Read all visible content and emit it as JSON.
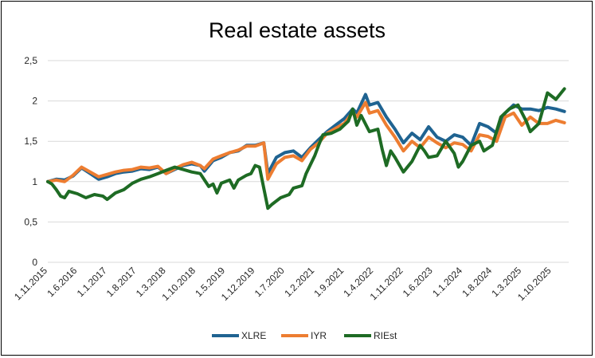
{
  "chart_data": {
    "type": "line",
    "title": "Real estate assets",
    "xlabel": "",
    "ylabel": "",
    "ylim": [
      0,
      2.5
    ],
    "y_ticks": [
      "0",
      "0,5",
      "1",
      "1,5",
      "2",
      "2,5"
    ],
    "x_start": "1.11.2015",
    "x_end": "1.2.2026",
    "x_tick_labels": [
      "1.11.2015",
      "1.6.2016",
      "1.1.2017",
      "1.8.2017",
      "1.3.2018",
      "1.10.2018",
      "1.5.2019",
      "1.12.2019",
      "1.7.2020",
      "1.2.2021",
      "1.9.2021",
      "1.4.2022",
      "1.11.2022",
      "1.6.2023",
      "1.1.2024",
      "1.8.2024",
      "1.3.2025",
      "1.10.2025"
    ],
    "grid": true,
    "legend_position": "bottom",
    "series": [
      {
        "name": "XLRE",
        "color": "#1f6391",
        "points": [
          [
            "1.11.2015",
            1.0
          ],
          [
            "1.1.2016",
            1.03
          ],
          [
            "1.3.2016",
            1.02
          ],
          [
            "1.5.2016",
            1.07
          ],
          [
            "1.7.2016",
            1.17
          ],
          [
            "1.9.2016",
            1.1
          ],
          [
            "1.11.2016",
            1.03
          ],
          [
            "1.1.2017",
            1.06
          ],
          [
            "1.3.2017",
            1.1
          ],
          [
            "1.5.2017",
            1.12
          ],
          [
            "1.7.2017",
            1.13
          ],
          [
            "1.9.2017",
            1.16
          ],
          [
            "1.11.2017",
            1.15
          ],
          [
            "1.1.2018",
            1.18
          ],
          [
            "1.3.2018",
            1.1
          ],
          [
            "1.5.2018",
            1.15
          ],
          [
            "1.7.2018",
            1.2
          ],
          [
            "1.9.2018",
            1.22
          ],
          [
            "1.11.2018",
            1.2
          ],
          [
            "1.12.2018",
            1.13
          ],
          [
            "1.2.2019",
            1.26
          ],
          [
            "1.4.2019",
            1.3
          ],
          [
            "1.6.2019",
            1.36
          ],
          [
            "1.8.2019",
            1.38
          ],
          [
            "1.10.2019",
            1.45
          ],
          [
            "1.12.2019",
            1.45
          ],
          [
            "1.2.2020",
            1.48
          ],
          [
            "1.3.2020",
            1.1
          ],
          [
            "1.5.2020",
            1.3
          ],
          [
            "1.7.2020",
            1.36
          ],
          [
            "1.9.2020",
            1.38
          ],
          [
            "1.11.2020",
            1.3
          ],
          [
            "1.1.2021",
            1.42
          ],
          [
            "1.3.2021",
            1.52
          ],
          [
            "1.5.2021",
            1.62
          ],
          [
            "1.7.2021",
            1.7
          ],
          [
            "1.9.2021",
            1.78
          ],
          [
            "1.11.2021",
            1.9
          ],
          [
            "1.12.2021",
            1.85
          ],
          [
            "1.2.2022",
            2.08
          ],
          [
            "1.3.2022",
            1.95
          ],
          [
            "1.5.2022",
            1.98
          ],
          [
            "1.7.2022",
            1.8
          ],
          [
            "1.9.2022",
            1.65
          ],
          [
            "1.11.2022",
            1.48
          ],
          [
            "1.1.2023",
            1.6
          ],
          [
            "1.3.2023",
            1.52
          ],
          [
            "1.5.2023",
            1.68
          ],
          [
            "1.7.2023",
            1.55
          ],
          [
            "1.9.2023",
            1.5
          ],
          [
            "1.11.2023",
            1.58
          ],
          [
            "1.1.2024",
            1.55
          ],
          [
            "1.3.2024",
            1.45
          ],
          [
            "1.5.2024",
            1.72
          ],
          [
            "1.7.2024",
            1.68
          ],
          [
            "1.9.2024",
            1.6
          ],
          [
            "1.11.2024",
            1.85
          ],
          [
            "1.1.2025",
            1.95
          ],
          [
            "1.3.2025",
            1.9
          ],
          [
            "1.5.2025",
            1.9
          ],
          [
            "1.7.2025",
            1.88
          ],
          [
            "1.9.2025",
            1.92
          ],
          [
            "1.11.2025",
            1.9
          ],
          [
            "1.1.2026",
            1.87
          ]
        ]
      },
      {
        "name": "IYR",
        "color": "#ed7d31",
        "points": [
          [
            "1.11.2015",
            1.0
          ],
          [
            "1.1.2016",
            1.02
          ],
          [
            "1.3.2016",
            1.0
          ],
          [
            "1.5.2016",
            1.08
          ],
          [
            "1.7.2016",
            1.18
          ],
          [
            "1.9.2016",
            1.12
          ],
          [
            "1.11.2016",
            1.06
          ],
          [
            "1.1.2017",
            1.09
          ],
          [
            "1.3.2017",
            1.12
          ],
          [
            "1.5.2017",
            1.14
          ],
          [
            "1.7.2017",
            1.15
          ],
          [
            "1.9.2017",
            1.18
          ],
          [
            "1.11.2017",
            1.17
          ],
          [
            "1.1.2018",
            1.19
          ],
          [
            "1.3.2018",
            1.1
          ],
          [
            "1.5.2018",
            1.16
          ],
          [
            "1.7.2018",
            1.21
          ],
          [
            "1.9.2018",
            1.24
          ],
          [
            "1.11.2018",
            1.2
          ],
          [
            "1.12.2018",
            1.16
          ],
          [
            "1.2.2019",
            1.28
          ],
          [
            "1.4.2019",
            1.32
          ],
          [
            "1.6.2019",
            1.36
          ],
          [
            "1.8.2019",
            1.39
          ],
          [
            "1.10.2019",
            1.44
          ],
          [
            "1.12.2019",
            1.44
          ],
          [
            "1.2.2020",
            1.48
          ],
          [
            "1.3.2020",
            1.03
          ],
          [
            "1.5.2020",
            1.22
          ],
          [
            "1.7.2020",
            1.3
          ],
          [
            "1.9.2020",
            1.32
          ],
          [
            "1.11.2020",
            1.26
          ],
          [
            "1.1.2021",
            1.4
          ],
          [
            "1.3.2021",
            1.48
          ],
          [
            "1.5.2021",
            1.6
          ],
          [
            "1.7.2021",
            1.66
          ],
          [
            "1.9.2021",
            1.72
          ],
          [
            "1.11.2021",
            1.86
          ],
          [
            "1.12.2021",
            1.8
          ],
          [
            "1.2.2022",
            1.98
          ],
          [
            "1.3.2022",
            1.85
          ],
          [
            "1.5.2022",
            1.88
          ],
          [
            "1.7.2022",
            1.7
          ],
          [
            "1.9.2022",
            1.55
          ],
          [
            "1.11.2022",
            1.38
          ],
          [
            "1.1.2023",
            1.5
          ],
          [
            "1.3.2023",
            1.42
          ],
          [
            "1.5.2023",
            1.55
          ],
          [
            "1.7.2023",
            1.48
          ],
          [
            "1.9.2023",
            1.42
          ],
          [
            "1.11.2023",
            1.48
          ],
          [
            "1.1.2024",
            1.46
          ],
          [
            "1.3.2024",
            1.38
          ],
          [
            "1.5.2024",
            1.58
          ],
          [
            "1.7.2024",
            1.56
          ],
          [
            "1.9.2024",
            1.5
          ],
          [
            "1.11.2024",
            1.8
          ],
          [
            "1.1.2025",
            1.85
          ],
          [
            "1.3.2025",
            1.7
          ],
          [
            "1.5.2025",
            1.8
          ],
          [
            "1.7.2025",
            1.72
          ],
          [
            "1.9.2025",
            1.72
          ],
          [
            "1.11.2025",
            1.76
          ],
          [
            "1.1.2026",
            1.73
          ]
        ]
      },
      {
        "name": "RIEst",
        "color": "#1e6b24",
        "points": [
          [
            "1.11.2015",
            1.0
          ],
          [
            "1.12.2015",
            0.97
          ],
          [
            "1.1.2016",
            0.9
          ],
          [
            "1.2.2016",
            0.82
          ],
          [
            "1.3.2016",
            0.8
          ],
          [
            "1.4.2016",
            0.88
          ],
          [
            "1.6.2016",
            0.85
          ],
          [
            "1.8.2016",
            0.8
          ],
          [
            "1.10.2016",
            0.84
          ],
          [
            "1.12.2016",
            0.82
          ],
          [
            "1.1.2017",
            0.78
          ],
          [
            "1.3.2017",
            0.86
          ],
          [
            "1.5.2017",
            0.9
          ],
          [
            "1.7.2017",
            0.98
          ],
          [
            "1.9.2017",
            1.03
          ],
          [
            "1.11.2017",
            1.06
          ],
          [
            "1.1.2018",
            1.1
          ],
          [
            "1.3.2018",
            1.14
          ],
          [
            "1.5.2018",
            1.18
          ],
          [
            "1.7.2018",
            1.15
          ],
          [
            "1.9.2018",
            1.12
          ],
          [
            "1.11.2018",
            1.1
          ],
          [
            "1.1.2019",
            0.94
          ],
          [
            "1.2.2019",
            0.97
          ],
          [
            "1.3.2019",
            0.86
          ],
          [
            "1.4.2019",
            0.98
          ],
          [
            "1.6.2019",
            1.02
          ],
          [
            "1.7.2019",
            0.92
          ],
          [
            "1.8.2019",
            1.02
          ],
          [
            "1.10.2019",
            1.08
          ],
          [
            "1.11.2019",
            1.1
          ],
          [
            "1.12.2019",
            1.2
          ],
          [
            "1.1.2020",
            1.18
          ],
          [
            "1.3.2020",
            0.67
          ],
          [
            "1.4.2020",
            0.72
          ],
          [
            "1.6.2020",
            0.8
          ],
          [
            "1.8.2020",
            0.84
          ],
          [
            "1.9.2020",
            0.92
          ],
          [
            "1.11.2020",
            0.95
          ],
          [
            "1.12.2020",
            1.1
          ],
          [
            "1.2.2021",
            1.32
          ],
          [
            "1.3.2021",
            1.45
          ],
          [
            "1.4.2021",
            1.58
          ],
          [
            "1.6.2021",
            1.6
          ],
          [
            "1.8.2021",
            1.65
          ],
          [
            "1.10.2021",
            1.75
          ],
          [
            "1.11.2021",
            1.9
          ],
          [
            "1.12.2021",
            1.7
          ],
          [
            "1.1.2022",
            1.82
          ],
          [
            "1.3.2022",
            1.62
          ],
          [
            "1.5.2022",
            1.65
          ],
          [
            "1.6.2022",
            1.4
          ],
          [
            "1.7.2022",
            1.2
          ],
          [
            "1.8.2022",
            1.38
          ],
          [
            "1.9.2022",
            1.3
          ],
          [
            "1.11.2022",
            1.12
          ],
          [
            "1.1.2023",
            1.25
          ],
          [
            "1.3.2023",
            1.45
          ],
          [
            "1.4.2023",
            1.38
          ],
          [
            "1.5.2023",
            1.3
          ],
          [
            "1.7.2023",
            1.32
          ],
          [
            "1.9.2023",
            1.5
          ],
          [
            "1.11.2023",
            1.35
          ],
          [
            "1.12.2023",
            1.18
          ],
          [
            "1.1.2024",
            1.25
          ],
          [
            "1.3.2024",
            1.45
          ],
          [
            "1.5.2024",
            1.5
          ],
          [
            "1.6.2024",
            1.38
          ],
          [
            "1.8.2024",
            1.45
          ],
          [
            "1.10.2024",
            1.8
          ],
          [
            "1.12.2024",
            1.9
          ],
          [
            "1.2.2025",
            1.95
          ],
          [
            "1.4.2025",
            1.75
          ],
          [
            "1.5.2025",
            1.62
          ],
          [
            "1.7.2025",
            1.72
          ],
          [
            "1.9.2025",
            2.1
          ],
          [
            "1.11.2025",
            2.02
          ],
          [
            "1.1.2026",
            2.15
          ]
        ]
      }
    ]
  }
}
